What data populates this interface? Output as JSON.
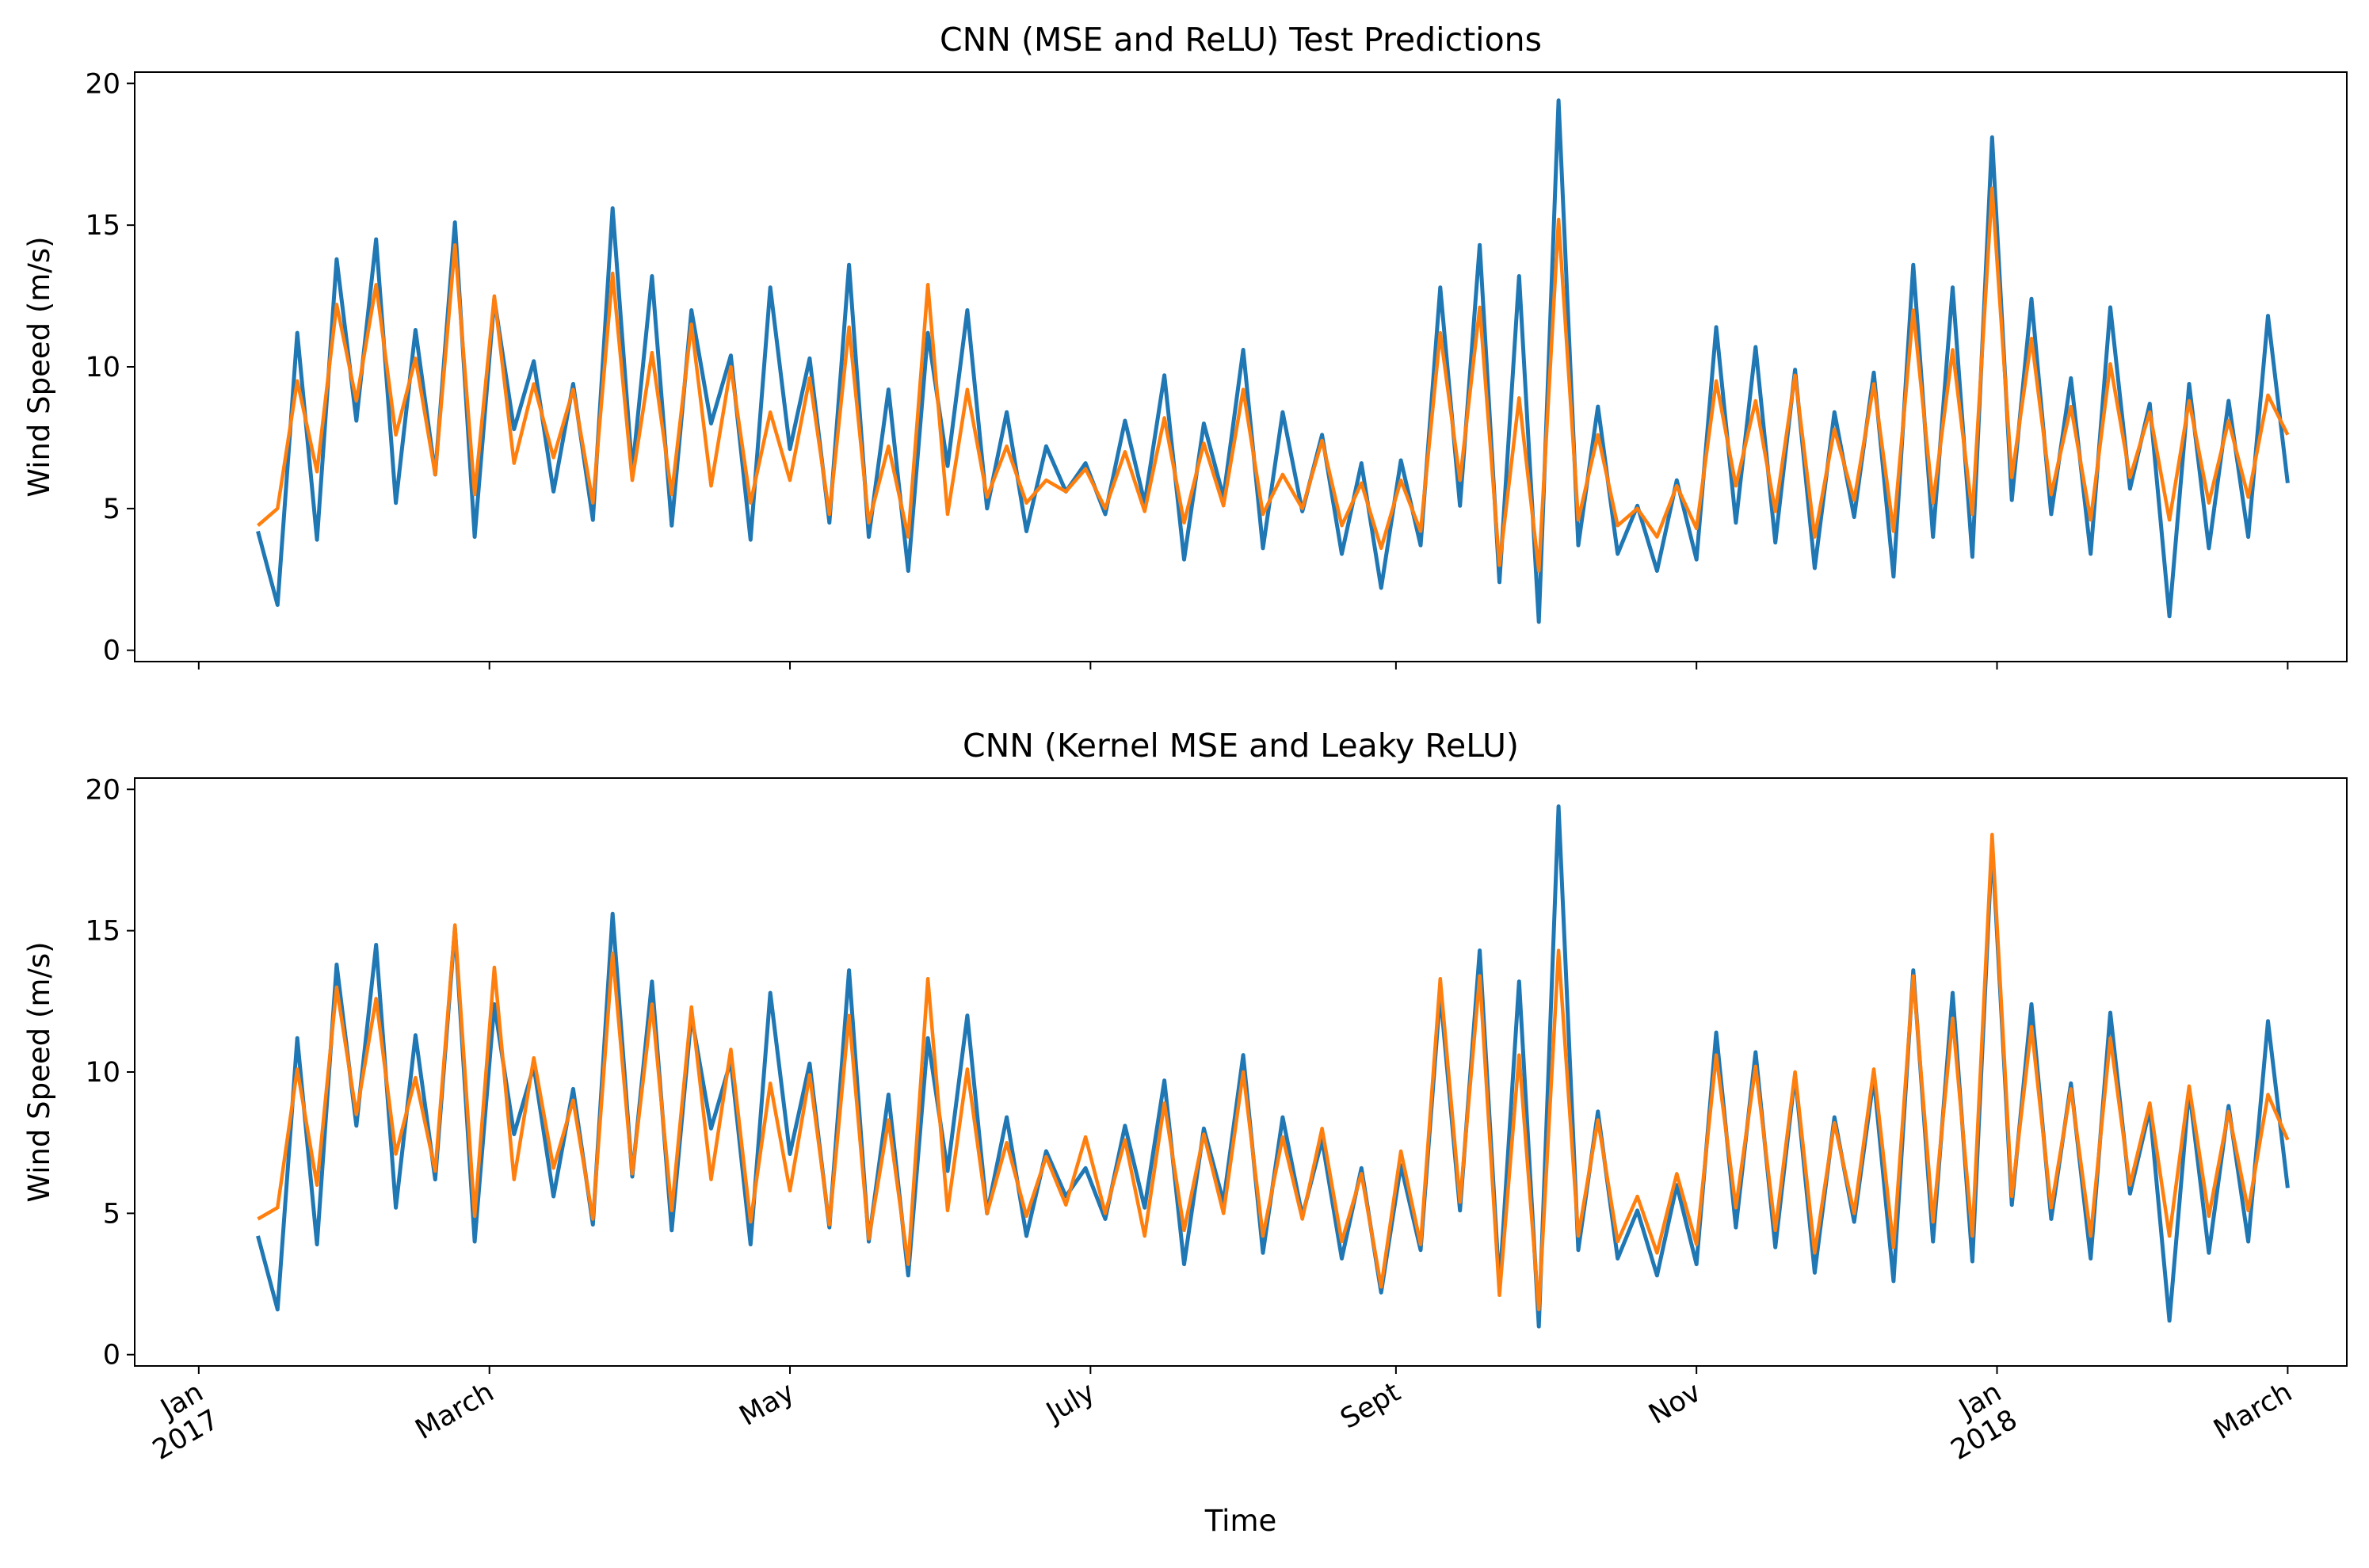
{
  "chart_data": [
    {
      "type": "line",
      "title": "CNN (MSE and ReLU) Test Predictions",
      "ylabel": "Wind Speed (m/s)",
      "xlabel": "",
      "x_range": [
        "2016-12-19",
        "2018-03-13"
      ],
      "ylim": [
        -0.4,
        20.4
      ],
      "yticks": [
        0,
        5,
        10,
        15,
        20
      ],
      "xticks": [
        "2017-01-01",
        "2017-03-01",
        "2017-05-01",
        "2017-07-01",
        "2017-09-01",
        "2017-11-01",
        "2018-01-01",
        "2018-03-01"
      ],
      "xtick_labels": [
        "",
        "",
        "",
        "",
        "",
        "",
        "",
        ""
      ],
      "grid": false,
      "x": [
        "2017-01-13",
        "2017-01-17",
        "2017-01-21",
        "2017-01-25",
        "2017-01-29",
        "2017-02-02",
        "2017-02-06",
        "2017-02-10",
        "2017-02-14",
        "2017-02-18",
        "2017-02-22",
        "2017-02-26",
        "2017-03-02",
        "2017-03-06",
        "2017-03-10",
        "2017-03-14",
        "2017-03-18",
        "2017-03-22",
        "2017-03-26",
        "2017-03-30",
        "2017-04-03",
        "2017-04-07",
        "2017-04-11",
        "2017-04-15",
        "2017-04-19",
        "2017-04-23",
        "2017-04-27",
        "2017-05-01",
        "2017-05-05",
        "2017-05-09",
        "2017-05-13",
        "2017-05-17",
        "2017-05-21",
        "2017-05-25",
        "2017-05-29",
        "2017-06-02",
        "2017-06-06",
        "2017-06-10",
        "2017-06-14",
        "2017-06-18",
        "2017-06-22",
        "2017-06-26",
        "2017-06-30",
        "2017-07-04",
        "2017-07-08",
        "2017-07-12",
        "2017-07-16",
        "2017-07-20",
        "2017-07-24",
        "2017-07-28",
        "2017-08-01",
        "2017-08-05",
        "2017-08-09",
        "2017-08-13",
        "2017-08-17",
        "2017-08-21",
        "2017-08-25",
        "2017-08-29",
        "2017-09-02",
        "2017-09-06",
        "2017-09-10",
        "2017-09-14",
        "2017-09-18",
        "2017-09-22",
        "2017-09-26",
        "2017-09-30",
        "2017-10-04",
        "2017-10-08",
        "2017-10-12",
        "2017-10-16",
        "2017-10-20",
        "2017-10-24",
        "2017-10-28",
        "2017-11-01",
        "2017-11-05",
        "2017-11-09",
        "2017-11-13",
        "2017-11-17",
        "2017-11-21",
        "2017-11-25",
        "2017-11-29",
        "2017-12-03",
        "2017-12-07",
        "2017-12-11",
        "2017-12-15",
        "2017-12-19",
        "2017-12-23",
        "2017-12-27",
        "2017-12-31",
        "2018-01-04",
        "2018-01-08",
        "2018-01-12",
        "2018-01-16",
        "2018-01-20",
        "2018-01-24",
        "2018-01-28",
        "2018-02-01",
        "2018-02-05",
        "2018-02-09",
        "2018-02-13",
        "2018-02-17",
        "2018-02-21",
        "2018-02-25",
        "2018-03-01"
      ],
      "series": [
        {
          "color": "#1f77b4",
          "values": [
            4.2,
            1.6,
            11.2,
            3.9,
            13.8,
            8.1,
            14.5,
            5.2,
            11.3,
            6.2,
            15.1,
            4.0,
            12.4,
            7.8,
            10.2,
            5.6,
            9.4,
            4.6,
            15.6,
            6.3,
            13.2,
            4.4,
            12.0,
            8.0,
            10.4,
            3.9,
            12.8,
            7.1,
            10.3,
            4.5,
            13.6,
            4.0,
            9.2,
            2.8,
            11.2,
            6.5,
            12.0,
            5.0,
            8.4,
            4.2,
            7.2,
            5.6,
            6.6,
            4.8,
            8.1,
            5.2,
            9.7,
            3.2,
            8.0,
            5.4,
            10.6,
            3.6,
            8.4,
            4.9,
            7.6,
            3.4,
            6.6,
            2.2,
            6.7,
            3.7,
            12.8,
            5.1,
            14.3,
            2.4,
            13.2,
            1.0,
            19.4,
            3.7,
            8.6,
            3.4,
            5.1,
            2.8,
            6.0,
            3.2,
            11.4,
            4.5,
            10.7,
            3.8,
            9.9,
            2.9,
            8.4,
            4.7,
            9.8,
            2.6,
            13.6,
            4.0,
            12.8,
            3.3,
            18.1,
            5.3,
            12.4,
            4.8,
            9.6,
            3.4,
            12.1,
            5.7,
            8.7,
            1.2,
            9.4,
            3.6,
            8.8,
            4.0,
            11.8,
            5.9
          ]
        },
        {
          "color": "#ff7f0e",
          "values": [
            4.4,
            5.0,
            9.5,
            6.3,
            12.2,
            8.8,
            12.9,
            7.6,
            10.3,
            6.2,
            14.3,
            5.5,
            12.5,
            6.6,
            9.4,
            6.8,
            9.2,
            5.2,
            13.3,
            6.0,
            10.5,
            5.5,
            11.5,
            5.8,
            10.0,
            5.2,
            8.4,
            6.0,
            9.6,
            4.8,
            11.4,
            4.5,
            7.2,
            4.0,
            12.9,
            4.8,
            9.2,
            5.4,
            7.2,
            5.2,
            6.0,
            5.6,
            6.4,
            5.0,
            7.0,
            4.9,
            8.2,
            4.5,
            7.3,
            5.1,
            9.2,
            4.8,
            6.2,
            5.0,
            7.4,
            4.4,
            5.9,
            3.6,
            6.0,
            4.2,
            11.2,
            6.0,
            12.1,
            3.0,
            8.9,
            2.8,
            15.2,
            4.6,
            7.6,
            4.4,
            5.0,
            4.0,
            5.8,
            4.3,
            9.5,
            5.8,
            8.8,
            4.9,
            9.7,
            4.0,
            7.8,
            5.3,
            9.4,
            4.2,
            12.0,
            5.2,
            10.6,
            4.8,
            16.3,
            6.1,
            11.0,
            5.5,
            8.6,
            4.6,
            10.1,
            6.1,
            8.4,
            4.6,
            8.8,
            5.2,
            8.1,
            5.4,
            9.0,
            7.6
          ]
        }
      ]
    },
    {
      "type": "line",
      "title": "CNN (Kernel MSE and Leaky ReLU)",
      "ylabel": "Wind Speed (m/s)",
      "xlabel": "Time",
      "x_range": [
        "2016-12-19",
        "2018-03-13"
      ],
      "ylim": [
        -0.4,
        20.4
      ],
      "yticks": [
        0,
        5,
        10,
        15,
        20
      ],
      "xticks": [
        "2017-01-01",
        "2017-03-01",
        "2017-05-01",
        "2017-07-01",
        "2017-09-01",
        "2017-11-01",
        "2018-01-01",
        "2018-03-01"
      ],
      "xtick_labels": [
        "Jan\n2017",
        "March",
        "May",
        "July",
        "Sept",
        "Nov",
        "Jan\n2018",
        "March"
      ],
      "grid": false,
      "x": [
        "2017-01-13",
        "2017-01-17",
        "2017-01-21",
        "2017-01-25",
        "2017-01-29",
        "2017-02-02",
        "2017-02-06",
        "2017-02-10",
        "2017-02-14",
        "2017-02-18",
        "2017-02-22",
        "2017-02-26",
        "2017-03-02",
        "2017-03-06",
        "2017-03-10",
        "2017-03-14",
        "2017-03-18",
        "2017-03-22",
        "2017-03-26",
        "2017-03-30",
        "2017-04-03",
        "2017-04-07",
        "2017-04-11",
        "2017-04-15",
        "2017-04-19",
        "2017-04-23",
        "2017-04-27",
        "2017-05-01",
        "2017-05-05",
        "2017-05-09",
        "2017-05-13",
        "2017-05-17",
        "2017-05-21",
        "2017-05-25",
        "2017-05-29",
        "2017-06-02",
        "2017-06-06",
        "2017-06-10",
        "2017-06-14",
        "2017-06-18",
        "2017-06-22",
        "2017-06-26",
        "2017-06-30",
        "2017-07-04",
        "2017-07-08",
        "2017-07-12",
        "2017-07-16",
        "2017-07-20",
        "2017-07-24",
        "2017-07-28",
        "2017-08-01",
        "2017-08-05",
        "2017-08-09",
        "2017-08-13",
        "2017-08-17",
        "2017-08-21",
        "2017-08-25",
        "2017-08-29",
        "2017-09-02",
        "2017-09-06",
        "2017-09-10",
        "2017-09-14",
        "2017-09-18",
        "2017-09-22",
        "2017-09-26",
        "2017-09-30",
        "2017-10-04",
        "2017-10-08",
        "2017-10-12",
        "2017-10-16",
        "2017-10-20",
        "2017-10-24",
        "2017-10-28",
        "2017-11-01",
        "2017-11-05",
        "2017-11-09",
        "2017-11-13",
        "2017-11-17",
        "2017-11-21",
        "2017-11-25",
        "2017-11-29",
        "2017-12-03",
        "2017-12-07",
        "2017-12-11",
        "2017-12-15",
        "2017-12-19",
        "2017-12-23",
        "2017-12-27",
        "2017-12-31",
        "2018-01-04",
        "2018-01-08",
        "2018-01-12",
        "2018-01-16",
        "2018-01-20",
        "2018-01-24",
        "2018-01-28",
        "2018-02-01",
        "2018-02-05",
        "2018-02-09",
        "2018-02-13",
        "2018-02-17",
        "2018-02-21",
        "2018-02-25",
        "2018-03-01"
      ],
      "series": [
        {
          "color": "#1f77b4",
          "values": [
            4.2,
            1.6,
            11.2,
            3.9,
            13.8,
            8.1,
            14.5,
            5.2,
            11.3,
            6.2,
            15.1,
            4.0,
            12.4,
            7.8,
            10.2,
            5.6,
            9.4,
            4.6,
            15.6,
            6.3,
            13.2,
            4.4,
            12.0,
            8.0,
            10.4,
            3.9,
            12.8,
            7.1,
            10.3,
            4.5,
            13.6,
            4.0,
            9.2,
            2.8,
            11.2,
            6.5,
            12.0,
            5.0,
            8.4,
            4.2,
            7.2,
            5.6,
            6.6,
            4.8,
            8.1,
            5.2,
            9.7,
            3.2,
            8.0,
            5.4,
            10.6,
            3.6,
            8.4,
            4.9,
            7.6,
            3.4,
            6.6,
            2.2,
            6.7,
            3.7,
            12.8,
            5.1,
            14.3,
            2.4,
            13.2,
            1.0,
            19.4,
            3.7,
            8.6,
            3.4,
            5.1,
            2.8,
            6.0,
            3.2,
            11.4,
            4.5,
            10.7,
            3.8,
            9.9,
            2.9,
            8.4,
            4.7,
            9.8,
            2.6,
            13.6,
            4.0,
            12.8,
            3.3,
            18.1,
            5.3,
            12.4,
            4.8,
            9.6,
            3.4,
            12.1,
            5.7,
            8.7,
            1.2,
            9.4,
            3.6,
            8.8,
            4.0,
            11.8,
            5.9
          ]
        },
        {
          "color": "#ff7f0e",
          "values": [
            4.8,
            5.2,
            10.1,
            6.0,
            13.0,
            8.5,
            12.6,
            7.1,
            9.8,
            6.5,
            15.2,
            4.9,
            13.7,
            6.2,
            10.5,
            6.6,
            9.0,
            4.8,
            14.2,
            6.4,
            12.4,
            5.1,
            12.3,
            6.2,
            10.8,
            4.7,
            9.6,
            5.8,
            9.9,
            4.6,
            12.0,
            4.1,
            8.3,
            3.2,
            13.3,
            5.1,
            10.1,
            5.0,
            7.5,
            4.9,
            7.0,
            5.3,
            7.7,
            5.0,
            7.6,
            4.2,
            8.9,
            4.4,
            7.8,
            5.0,
            10.0,
            4.2,
            7.7,
            4.8,
            8.0,
            4.0,
            6.4,
            2.4,
            7.2,
            3.9,
            13.3,
            5.4,
            13.4,
            2.1,
            10.6,
            1.6,
            14.3,
            4.2,
            8.3,
            4.0,
            5.6,
            3.6,
            6.4,
            3.9,
            10.6,
            5.2,
            10.2,
            4.4,
            10.0,
            3.6,
            8.2,
            5.0,
            10.1,
            3.8,
            13.4,
            4.7,
            11.9,
            4.2,
            18.4,
            5.6,
            11.6,
            5.2,
            9.4,
            4.2,
            11.2,
            6.0,
            8.9,
            4.2,
            9.5,
            4.9,
            8.6,
            5.1,
            9.2,
            7.6
          ]
        }
      ]
    }
  ]
}
